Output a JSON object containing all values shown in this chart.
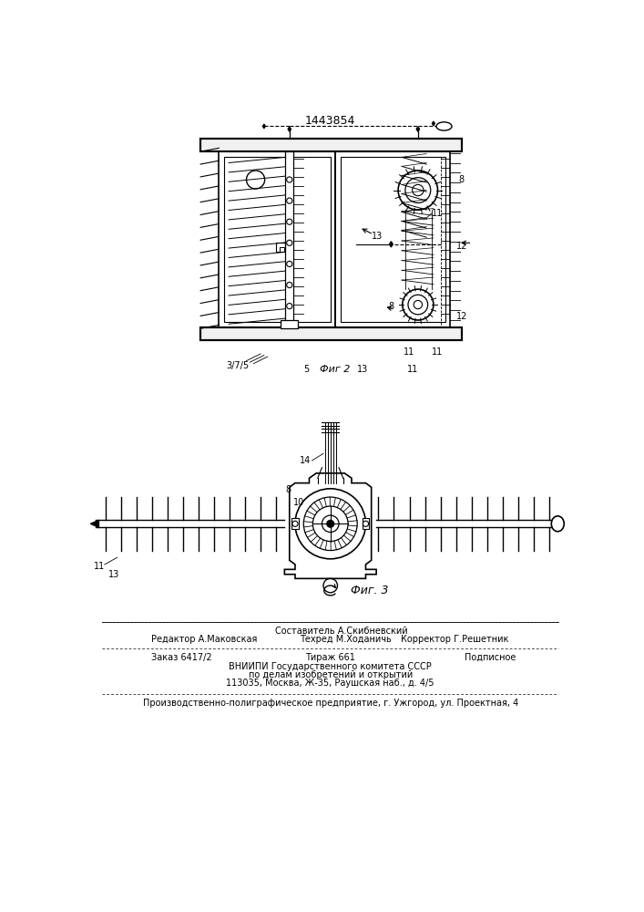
{
  "patent_number": "1443854",
  "background_color": "#ffffff",
  "line_color": "#000000",
  "fig2_label": "Фиг 2",
  "fig3_label": "Фиг. 3"
}
